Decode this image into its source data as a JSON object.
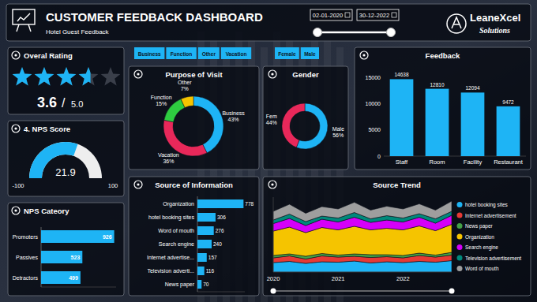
{
  "header": {
    "title": "CUSTOMER FEEDBACK DASHBOARD",
    "subtitle": "Hotel Guest Feedback",
    "date_from": "02-01-2020",
    "date_to": "30-12-2022",
    "logo": "LeaneXcel",
    "logo_sub": "Solutions"
  },
  "filters": {
    "purpose": [
      "Business",
      "Function",
      "Other",
      "Vacation"
    ],
    "gender": [
      "Female",
      "Male"
    ]
  },
  "chart_data": [
    {
      "type": "rating",
      "title": "Overal Rating",
      "value": 3.6,
      "separator": "/",
      "ylim": [
        0,
        5
      ],
      "yticks": [
        {
          "value": 5,
          "label": "5.0"
        }
      ],
      "color": "#1eb4f5"
    },
    {
      "type": "gauge",
      "title": "4. NPS Score",
      "value": 21.9,
      "ylim": [
        -100,
        100
      ],
      "yticks": [
        -100,
        100
      ],
      "color": "#1eb4f5"
    },
    {
      "type": "bar",
      "orientation": "horizontal",
      "title": "NPS Cateory",
      "categories": [
        "Promoters",
        "Passives",
        "Detractors"
      ],
      "values": [
        926,
        523,
        499
      ],
      "color": "#1eb4f5",
      "xlim": [
        0,
        950
      ],
      "data_labels": true,
      "tick_labels": "y"
    },
    {
      "type": "pie",
      "title": "Purpose of Visit",
      "categories": [
        "Business",
        "Vacation",
        "Function",
        "Other"
      ],
      "values": [
        43,
        36,
        15,
        7
      ],
      "value_labels": [
        "43%",
        "36%",
        "15%",
        "7%"
      ],
      "colors": [
        "#1eb4f5",
        "#e8285a",
        "#2ecc40",
        "#f5c400"
      ],
      "data_labels": true
    },
    {
      "type": "pie",
      "title": "Gender",
      "categories": [
        "Male",
        "Fem"
      ],
      "values": [
        56,
        44
      ],
      "value_labels": [
        "56%",
        "44%"
      ],
      "colors": [
        "#1eb4f5",
        "#e8285a"
      ],
      "data_labels": true
    },
    {
      "type": "bar",
      "title": "Feedback",
      "categories": [
        "Staff",
        "Room",
        "Facility",
        "Restaurant"
      ],
      "values": [
        14638,
        12810,
        12094,
        9472
      ],
      "color": "#1eb4f5",
      "ylim": [
        0,
        15000
      ],
      "yticks": [
        0,
        5000,
        10000,
        15000
      ],
      "grid": false,
      "data_labels": true
    },
    {
      "type": "bar",
      "orientation": "horizontal",
      "title": "Source of Information",
      "categories": [
        "Organization",
        "hotel booking sites",
        "Word of mouth",
        "Search engine",
        "Internet advertise...",
        "Television adverti...",
        "News paper"
      ],
      "values": [
        778,
        306,
        276,
        240,
        157,
        116,
        70
      ],
      "color": "#1eb4f5",
      "xlim": [
        0,
        800
      ],
      "data_labels": true,
      "tick_labels": "y"
    },
    {
      "type": "area",
      "title": "Source Trend",
      "stacked": true,
      "legend": "right",
      "tick_labels": "x",
      "ylim": [
        0,
        190
      ],
      "categories": [
        "2020",
        null,
        null,
        null,
        "2021",
        null,
        null,
        null,
        "2022",
        null,
        null,
        null
      ],
      "series": [
        {
          "name": "hotel booking sites",
          "color": "#1eb4f5",
          "values": [
            24,
            27,
            22,
            26,
            25,
            28,
            23,
            26,
            24,
            27,
            25,
            29
          ]
        },
        {
          "name": "Internet advertisement",
          "color": "#e53935",
          "values": [
            12,
            14,
            11,
            15,
            13,
            12,
            14,
            13,
            12,
            15,
            13,
            14
          ]
        },
        {
          "name": "News paper",
          "color": "#43a047",
          "values": [
            6,
            5,
            7,
            6,
            5,
            6,
            7,
            5,
            6,
            6,
            5,
            7
          ]
        },
        {
          "name": "Organization",
          "color": "#f5c400",
          "values": [
            62,
            68,
            60,
            66,
            64,
            70,
            63,
            67,
            65,
            69,
            62,
            71
          ]
        },
        {
          "name": "Search engine",
          "color": "#d500f9",
          "values": [
            19,
            22,
            18,
            21,
            20,
            23,
            19,
            21,
            20,
            22,
            19,
            23
          ]
        },
        {
          "name": "Television advertisement",
          "color": "#00897b",
          "values": [
            9,
            11,
            10,
            8,
            10,
            12,
            9,
            11,
            10,
            9,
            11,
            10
          ]
        },
        {
          "name": "Word of mouth",
          "color": "#9e9e9e",
          "values": [
            22,
            25,
            21,
            24,
            23,
            26,
            22,
            24,
            23,
            25,
            22,
            26
          ]
        }
      ]
    }
  ]
}
